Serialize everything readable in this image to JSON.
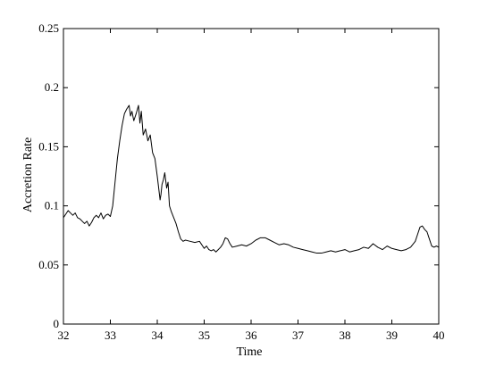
{
  "chart_data": {
    "type": "line",
    "title": "",
    "xlabel": "Time",
    "ylabel": "Accretion Rate",
    "xlim": [
      32,
      40
    ],
    "ylim": [
      0,
      0.25
    ],
    "xticks": [
      "32",
      "33",
      "34",
      "35",
      "36",
      "37",
      "38",
      "39",
      "40"
    ],
    "yticks": [
      "0",
      "0.05",
      "0.1",
      "0.15",
      "0.2",
      "0.25"
    ],
    "grid": false,
    "series": [
      {
        "color": "#000000",
        "x": [
          32.0,
          32.05,
          32.1,
          32.15,
          32.2,
          32.25,
          32.3,
          32.35,
          32.4,
          32.45,
          32.5,
          32.55,
          32.6,
          32.65,
          32.7,
          32.75,
          32.8,
          32.85,
          32.9,
          32.95,
          33.0,
          33.05,
          33.1,
          33.15,
          33.2,
          33.25,
          33.3,
          33.35,
          33.4,
          33.43,
          33.46,
          33.5,
          33.55,
          33.6,
          33.63,
          33.66,
          33.7,
          33.75,
          33.8,
          33.85,
          33.9,
          33.95,
          34.0,
          34.03,
          34.06,
          34.08,
          34.1,
          34.13,
          34.16,
          34.2,
          34.23,
          34.26,
          34.3,
          34.35,
          34.4,
          34.45,
          34.5,
          34.55,
          34.6,
          34.7,
          34.8,
          34.9,
          35.0,
          35.05,
          35.1,
          35.15,
          35.2,
          35.25,
          35.3,
          35.35,
          35.4,
          35.45,
          35.5,
          35.55,
          35.6,
          35.7,
          35.8,
          35.9,
          36.0,
          36.1,
          36.2,
          36.3,
          36.4,
          36.5,
          36.6,
          36.7,
          36.8,
          36.9,
          37.0,
          37.1,
          37.2,
          37.3,
          37.4,
          37.5,
          37.6,
          37.7,
          37.8,
          37.9,
          38.0,
          38.1,
          38.2,
          38.3,
          38.4,
          38.5,
          38.6,
          38.7,
          38.8,
          38.9,
          39.0,
          39.1,
          39.2,
          39.3,
          39.4,
          39.5,
          39.55,
          39.6,
          39.65,
          39.7,
          39.75,
          39.8,
          39.85,
          39.9,
          39.95,
          40.0
        ],
        "y": [
          0.09,
          0.093,
          0.096,
          0.094,
          0.092,
          0.094,
          0.09,
          0.089,
          0.087,
          0.085,
          0.087,
          0.083,
          0.086,
          0.09,
          0.092,
          0.09,
          0.094,
          0.089,
          0.092,
          0.093,
          0.091,
          0.1,
          0.12,
          0.14,
          0.155,
          0.168,
          0.178,
          0.182,
          0.185,
          0.176,
          0.18,
          0.172,
          0.178,
          0.185,
          0.17,
          0.18,
          0.16,
          0.165,
          0.155,
          0.16,
          0.145,
          0.14,
          0.125,
          0.115,
          0.105,
          0.11,
          0.118,
          0.122,
          0.128,
          0.115,
          0.12,
          0.1,
          0.095,
          0.09,
          0.085,
          0.078,
          0.072,
          0.07,
          0.071,
          0.07,
          0.069,
          0.07,
          0.064,
          0.066,
          0.063,
          0.062,
          0.063,
          0.061,
          0.063,
          0.065,
          0.068,
          0.073,
          0.072,
          0.068,
          0.065,
          0.066,
          0.067,
          0.066,
          0.068,
          0.071,
          0.073,
          0.073,
          0.071,
          0.069,
          0.067,
          0.068,
          0.067,
          0.065,
          0.064,
          0.063,
          0.062,
          0.061,
          0.06,
          0.06,
          0.061,
          0.062,
          0.061,
          0.062,
          0.063,
          0.061,
          0.062,
          0.063,
          0.065,
          0.064,
          0.068,
          0.065,
          0.063,
          0.066,
          0.064,
          0.063,
          0.062,
          0.063,
          0.065,
          0.07,
          0.076,
          0.082,
          0.083,
          0.08,
          0.078,
          0.072,
          0.066,
          0.065,
          0.066,
          0.065
        ]
      }
    ]
  }
}
